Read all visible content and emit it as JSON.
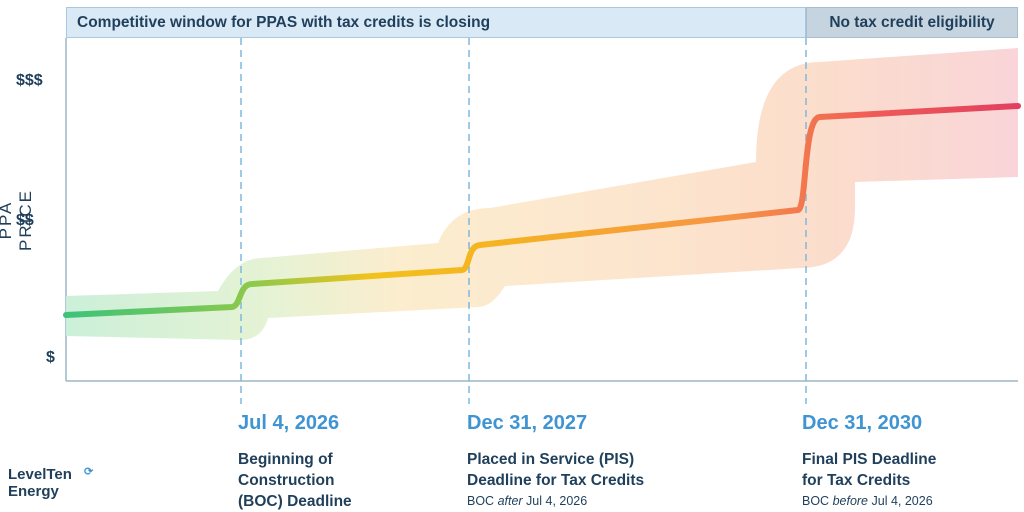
{
  "banners": {
    "left": "Competitive window for PPAS with tax credits is closing",
    "right": "No tax credit eligibility"
  },
  "logo": {
    "line1": "LevelTen",
    "line2": "Energy"
  },
  "chart_data": {
    "type": "line",
    "title": "",
    "xlabel": "",
    "ylabel": "PPA PRICE",
    "yticks": [
      "$$$",
      "$$",
      "$"
    ],
    "grid": false,
    "milestones": [
      {
        "date": "Jul 4, 2026",
        "label": "Beginning of\nConstruction\n(BOC) Deadline",
        "note_pre": "",
        "note_em": "",
        "note_post": ""
      },
      {
        "date": "Dec 31, 2027",
        "label": "Placed in Service (PIS)\nDeadline for Tax Credits",
        "note_pre": "BOC ",
        "note_em": "after",
        "note_post": " Jul 4, 2026"
      },
      {
        "date": "Dec 31, 2030",
        "label": "Final PIS Deadline\nfor Tax Credits",
        "note_pre": "BOC ",
        "note_em": "before",
        "note_post": " Jul 4, 2026"
      }
    ],
    "series": [
      {
        "values_note": "price trend steps up at each deadline",
        "color_start": "#3cc37a",
        "color_mid": "#f5bc1a",
        "color_end": "#e8405c"
      }
    ]
  }
}
